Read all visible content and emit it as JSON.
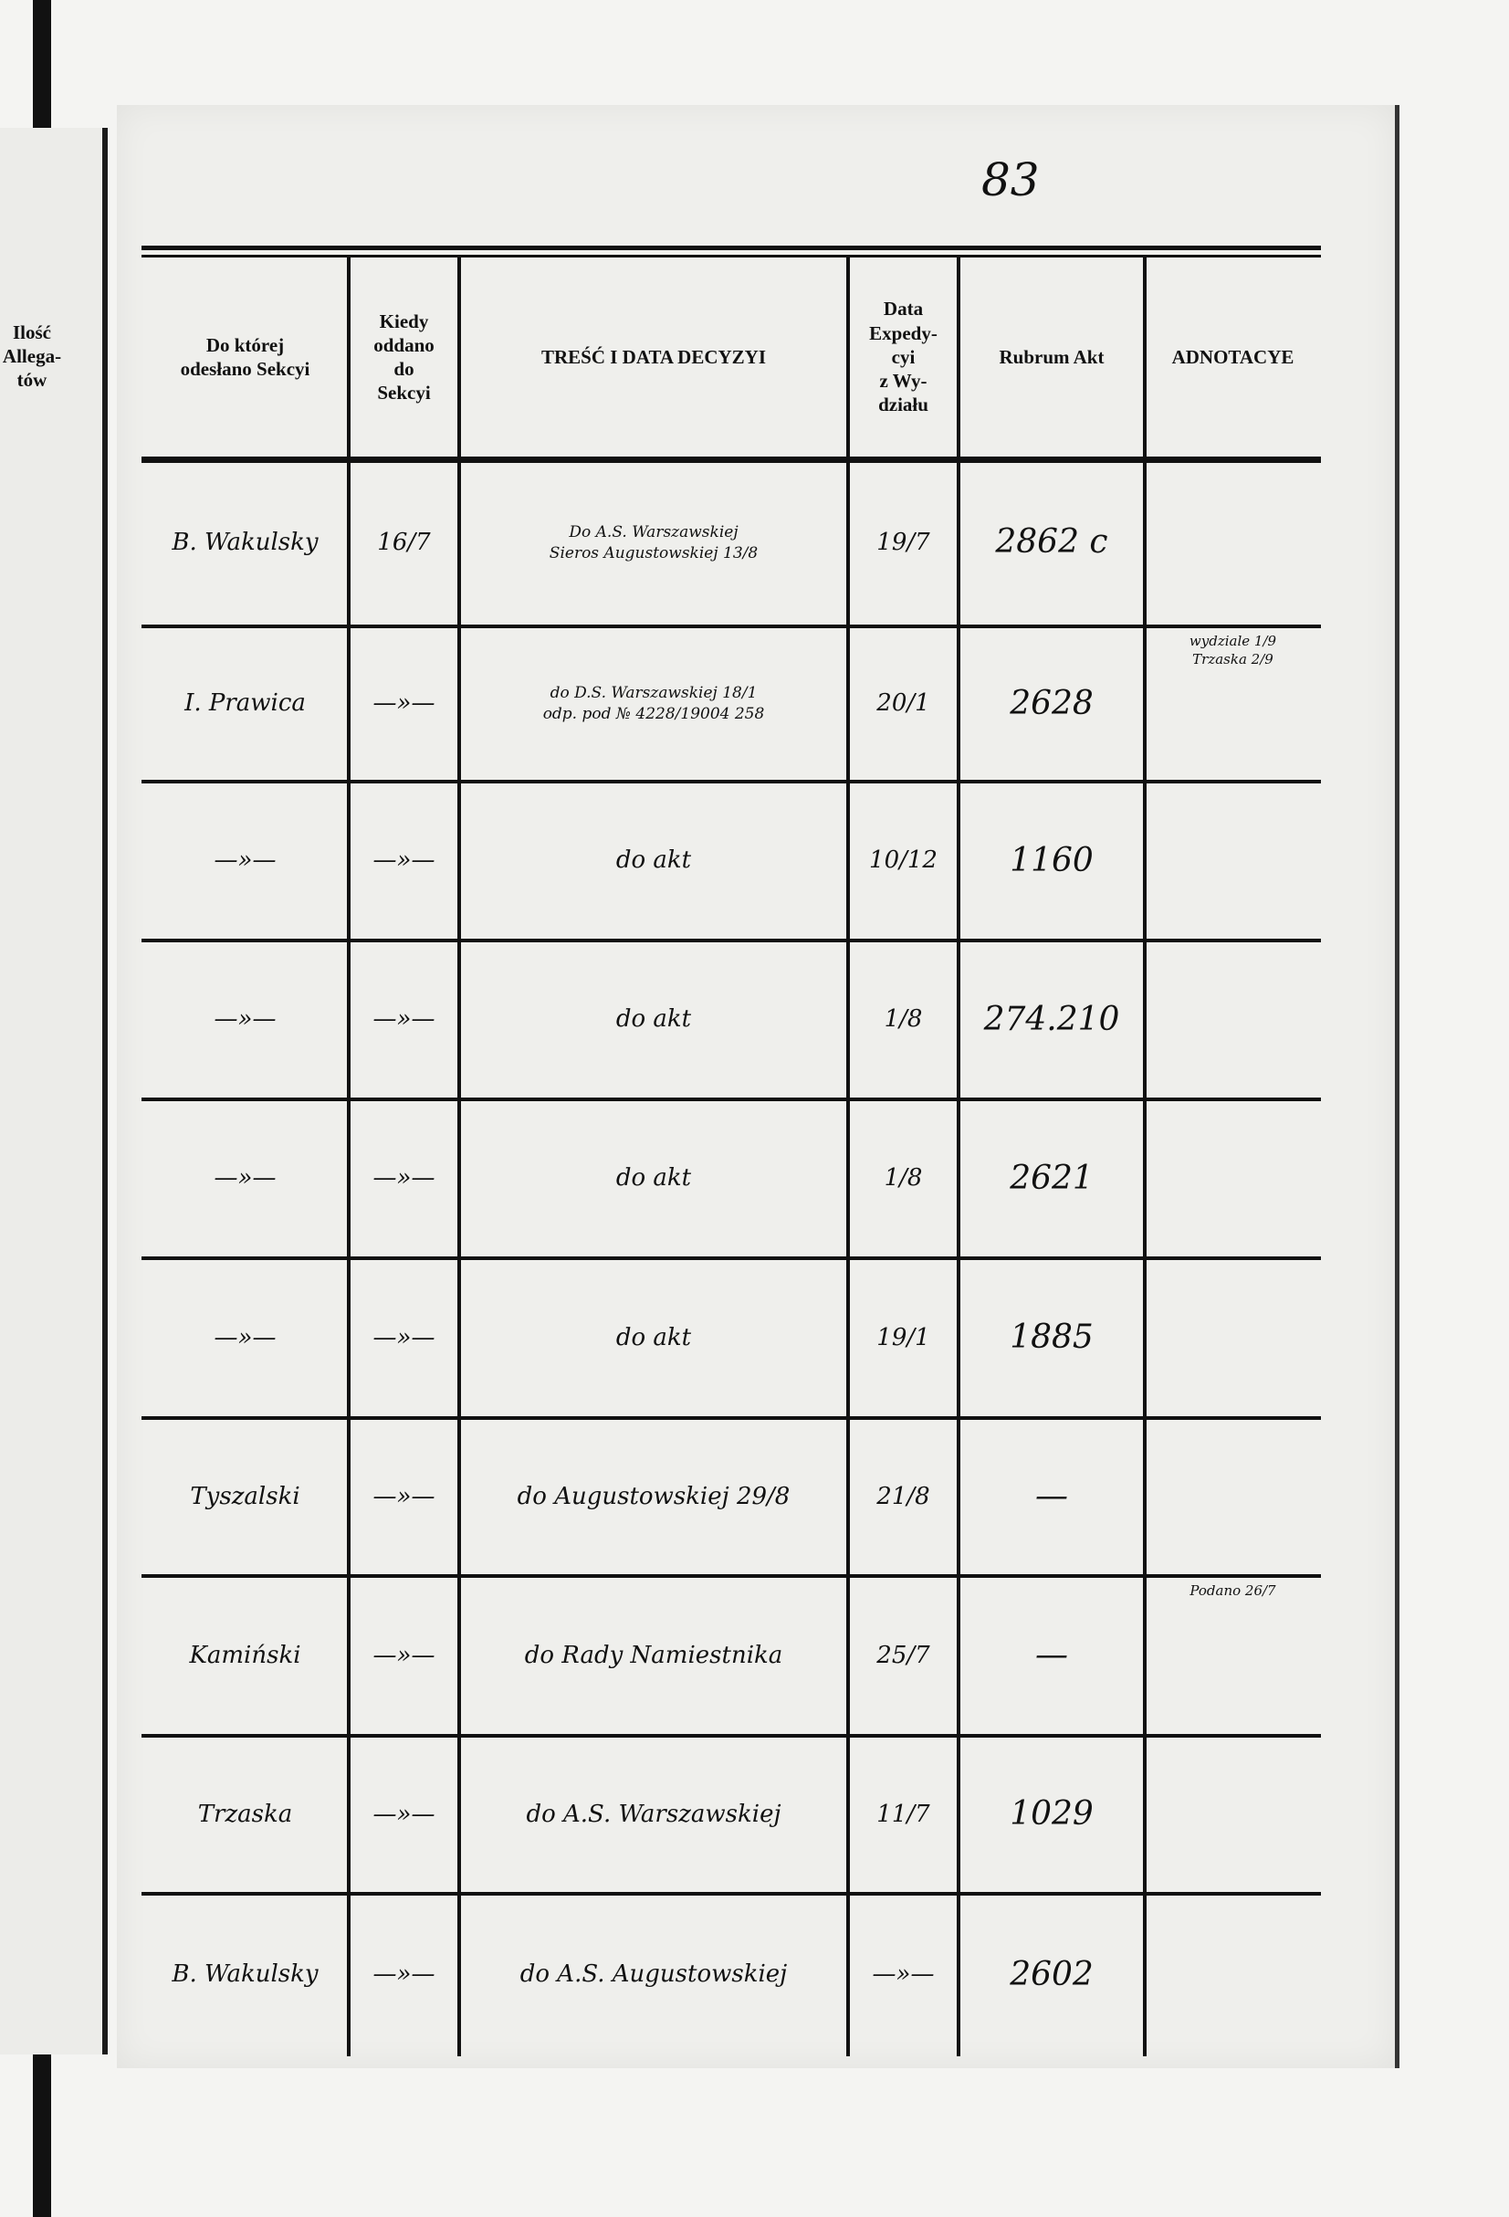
{
  "page_number": "83",
  "left_page": {
    "header": "Ilość\nAllega-\ntów"
  },
  "columns": [
    {
      "key": "sekcja",
      "label": "Do której\nodesłano Sekcyi"
    },
    {
      "key": "kiedy",
      "label": "Kiedy\noddano\ndo\nSekcyi"
    },
    {
      "key": "tresc",
      "label": "TREŚĆ I DATA DECYZYI"
    },
    {
      "key": "data_exp",
      "label": "Data\nExpedy-\ncyi\nz Wy-\ndziału"
    },
    {
      "key": "rubrum",
      "label": "Rubrum Akt"
    },
    {
      "key": "adnotacye",
      "label": "ADNOTACYE"
    }
  ],
  "rows": [
    {
      "sekcja": "B. Wakulsky",
      "kiedy": "16/7",
      "tresc": "Do A.S. Warszawskiej\nSieros Augustowskiej 13/8",
      "data_exp": "19/7",
      "rubrum": "2862 c",
      "adnotacye": ""
    },
    {
      "sekcja": "I. Prawica",
      "kiedy": "—»—",
      "tresc": "do D.S. Warszawskiej 18/1\nodp. pod № 4228/19004 258",
      "data_exp": "20/1",
      "rubrum": "2628",
      "adnotacye": "wydziale 1/9\nTrzaska 2/9"
    },
    {
      "sekcja": "—»—",
      "kiedy": "—»—",
      "tresc": "do akt",
      "data_exp": "10/12",
      "rubrum": "1160",
      "adnotacye": ""
    },
    {
      "sekcja": "—»—",
      "kiedy": "—»—",
      "tresc": "do akt",
      "data_exp": "1/8",
      "rubrum": "274.210",
      "adnotacye": ""
    },
    {
      "sekcja": "—»—",
      "kiedy": "—»—",
      "tresc": "do akt",
      "data_exp": "1/8",
      "rubrum": "2621",
      "adnotacye": ""
    },
    {
      "sekcja": "—»—",
      "kiedy": "—»—",
      "tresc": "do akt",
      "data_exp": "19/1",
      "rubrum": "1885",
      "adnotacye": ""
    },
    {
      "sekcja": "Tyszalski",
      "kiedy": "—»—",
      "tresc": "do Augustowskiej 29/8",
      "data_exp": "21/8",
      "rubrum": "—",
      "adnotacye": ""
    },
    {
      "sekcja": "Kamiński",
      "kiedy": "—»—",
      "tresc": "do Rady Namiestnika",
      "data_exp": "25/7",
      "rubrum": "—",
      "adnotacye": "Podano 26/7"
    },
    {
      "sekcja": "Trzaska",
      "kiedy": "—»—",
      "tresc": "do A.S. Warszawskiej",
      "data_exp": "11/7",
      "rubrum": "1029",
      "adnotacye": ""
    },
    {
      "sekcja": "B. Wakulsky",
      "kiedy": "—»—",
      "tresc": "do A.S. Augustowskiej",
      "data_exp": "—»—",
      "rubrum": "2602",
      "adnotacye": ""
    }
  ]
}
